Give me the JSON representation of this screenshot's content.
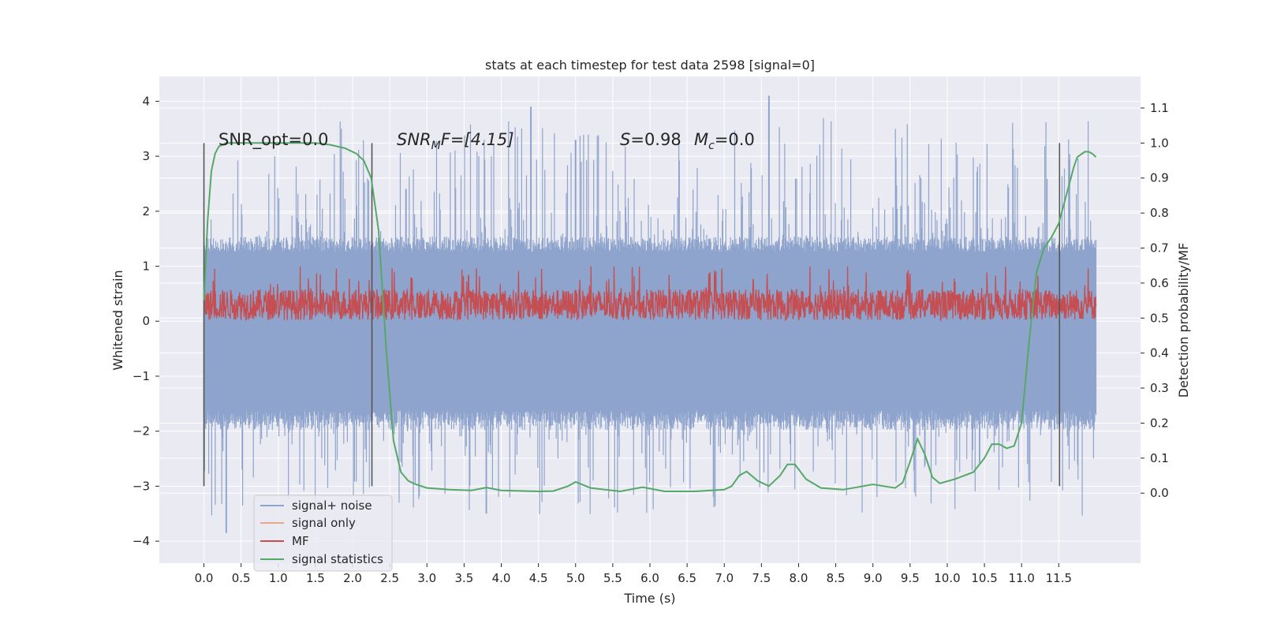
{
  "chart_data": {
    "type": "line",
    "title": "stats at each timestep for test data 2598 [signal=0]",
    "xlabel": "Time (s)",
    "ylabel": "Whitened strain",
    "y2label": "Detection probability/MF",
    "xlim": [
      -0.6,
      12.6
    ],
    "ylim": [
      -4.4,
      4.45
    ],
    "y2lim": [
      -0.2,
      1.19
    ],
    "xticks": [
      "0.0",
      "0.5",
      "1.0",
      "1.5",
      "2.0",
      "2.5",
      "3.0",
      "3.5",
      "4.0",
      "4.5",
      "5.0",
      "5.5",
      "6.0",
      "6.5",
      "7.0",
      "7.5",
      "8.0",
      "8.5",
      "9.0",
      "9.5",
      "10.0",
      "10.5",
      "11.0",
      "11.5"
    ],
    "yticks": [
      "−4",
      "−3",
      "−2",
      "−1",
      "0",
      "1",
      "2",
      "3",
      "4"
    ],
    "y2ticks": [
      "0.0",
      "0.1",
      "0.2",
      "0.3",
      "0.4",
      "0.5",
      "0.6",
      "0.7",
      "0.8",
      "0.9",
      "1.0",
      "1.1"
    ],
    "grid": true,
    "legend_position": "lower-left",
    "annotations": {
      "snr_opt": "SNR_opt=0.0",
      "snr_mf_base": "SNR",
      "snr_mf_sub": "M",
      "snr_mf_rest": "F=[4.15]",
      "s_label": "S",
      "s_value": "=0.98",
      "mc_base": "M",
      "mc_sub": "c",
      "mc_value": "=0.0"
    },
    "markers_x": [
      0.0,
      2.26,
      11.51
    ],
    "series": [
      {
        "name": "signal+ noise",
        "color": "#8fa4cc",
        "axis": "left",
        "envelope": {
          "x_range": [
            0.0,
            12.0
          ],
          "typical_max": 1.4,
          "typical_min": -1.8,
          "peak_max": 4.1,
          "peak_min": -3.85,
          "highlights": [
            [
              4.4,
              3.9
            ],
            [
              7.6,
              4.1
            ],
            [
              0.3,
              -3.85
            ],
            [
              3.8,
              -3.5
            ],
            [
              5.0,
              3.3
            ],
            [
              2.2,
              2.6
            ]
          ]
        }
      },
      {
        "name": "signal only",
        "color": "#e8a68a",
        "axis": "left",
        "values": []
      },
      {
        "name": "MF",
        "color": "#c44e52",
        "axis": "left",
        "envelope": {
          "x_range": [
            0.0,
            12.0
          ],
          "base": 0.3,
          "spread": 0.35,
          "min": 0.0,
          "max": 1.0
        }
      },
      {
        "name": "signal statistics",
        "color": "#55a868",
        "axis": "right",
        "x": [
          0.0,
          0.05,
          0.1,
          0.15,
          0.2,
          0.3,
          0.5,
          1.0,
          1.5,
          1.7,
          1.9,
          2.05,
          2.15,
          2.25,
          2.35,
          2.45,
          2.55,
          2.65,
          2.75,
          2.85,
          3.0,
          3.3,
          3.6,
          3.8,
          4.0,
          4.5,
          4.7,
          4.9,
          5.0,
          5.2,
          5.6,
          5.9,
          6.2,
          6.6,
          7.0,
          7.1,
          7.2,
          7.3,
          7.45,
          7.6,
          7.75,
          7.85,
          7.95,
          8.1,
          8.3,
          8.6,
          9.0,
          9.2,
          9.3,
          9.4,
          9.5,
          9.6,
          9.7,
          9.8,
          9.9,
          10.1,
          10.35,
          10.5,
          10.6,
          10.7,
          10.8,
          10.9,
          11.0,
          11.1,
          11.2,
          11.3,
          11.4,
          11.5,
          11.6,
          11.7,
          11.75,
          11.85,
          11.9,
          11.95,
          12.0
        ],
        "values": [
          0.55,
          0.78,
          0.92,
          0.97,
          0.99,
          1.0,
          1.0,
          1.0,
          1.0,
          0.995,
          0.985,
          0.97,
          0.95,
          0.9,
          0.75,
          0.42,
          0.15,
          0.06,
          0.035,
          0.025,
          0.015,
          0.01,
          0.008,
          0.016,
          0.008,
          0.005,
          0.006,
          0.02,
          0.032,
          0.015,
          0.005,
          0.017,
          0.005,
          0.005,
          0.01,
          0.02,
          0.05,
          0.062,
          0.035,
          0.02,
          0.05,
          0.082,
          0.082,
          0.04,
          0.015,
          0.01,
          0.025,
          0.018,
          0.015,
          0.03,
          0.09,
          0.155,
          0.11,
          0.045,
          0.028,
          0.04,
          0.06,
          0.1,
          0.14,
          0.14,
          0.128,
          0.135,
          0.2,
          0.43,
          0.63,
          0.7,
          0.73,
          0.77,
          0.85,
          0.93,
          0.96,
          0.975,
          0.975,
          0.97,
          0.96
        ]
      }
    ]
  }
}
